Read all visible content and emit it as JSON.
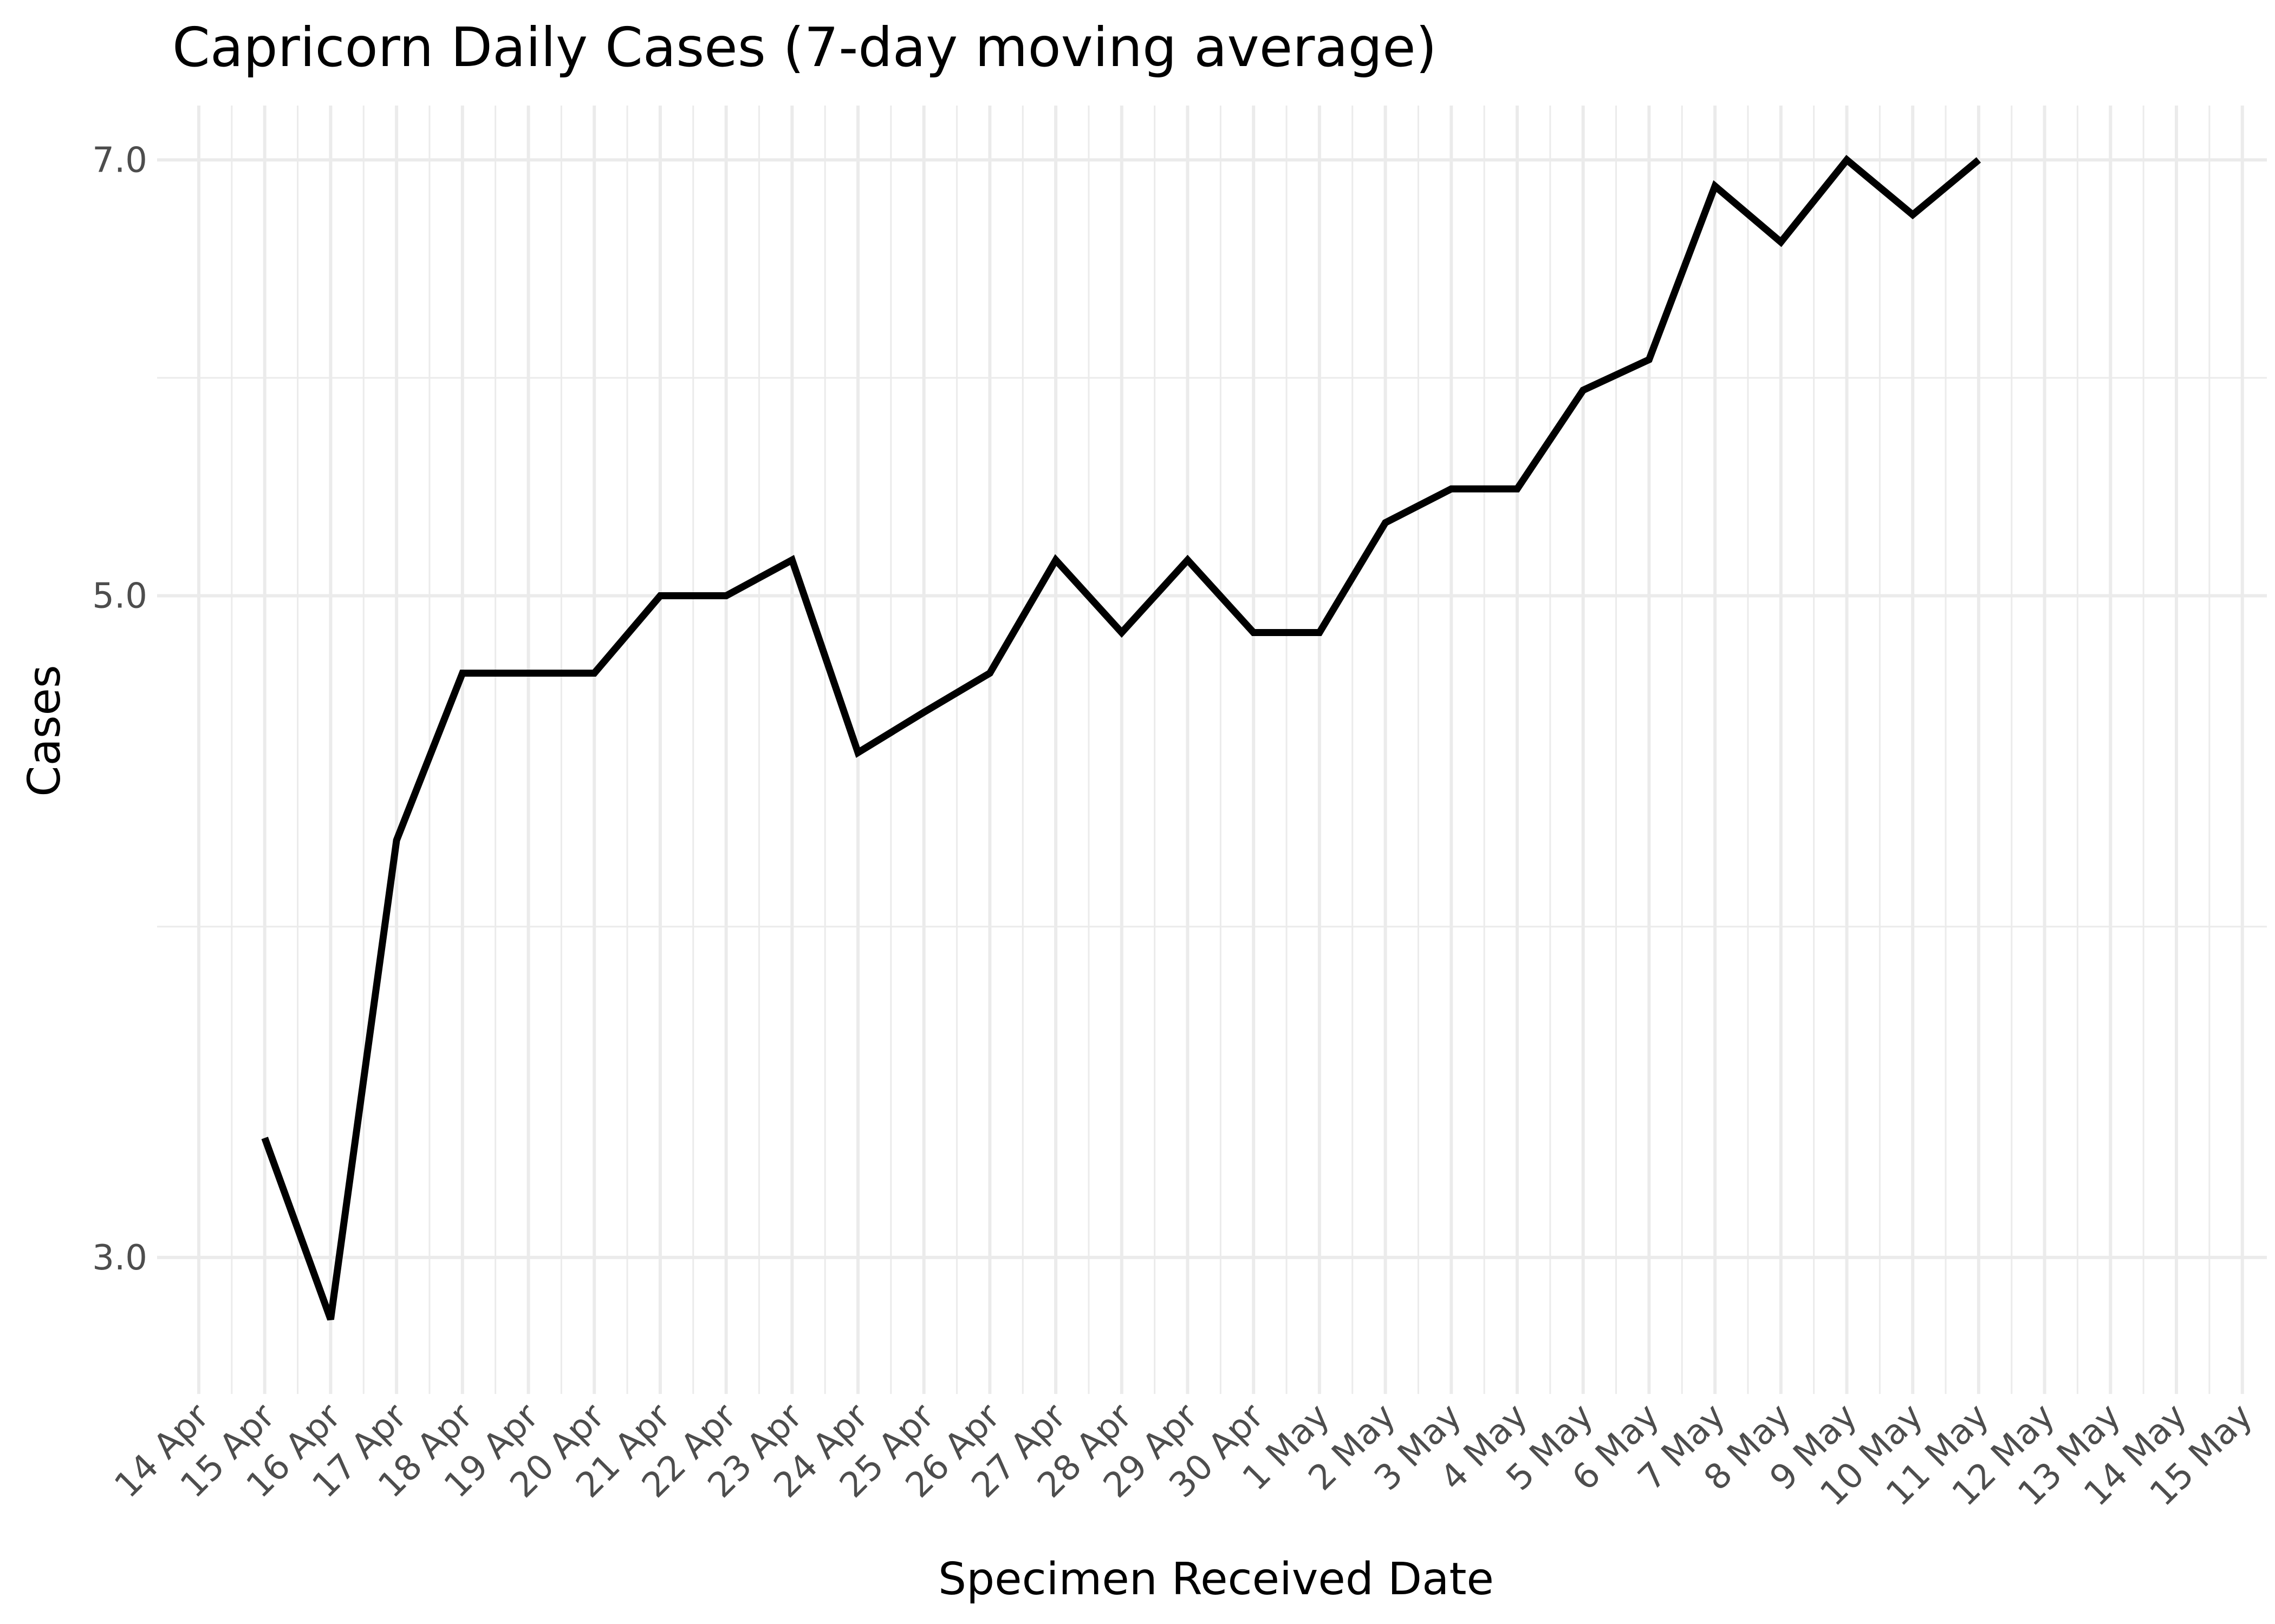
{
  "chart_data": {
    "type": "line",
    "title": "Capricorn Daily Cases (7-day moving average)",
    "xlabel": "Specimen Received Date",
    "ylabel": "Cases",
    "x_ticks": [
      "14 Apr",
      "15 Apr",
      "16 Apr",
      "17 Apr",
      "18 Apr",
      "19 Apr",
      "20 Apr",
      "21 Apr",
      "22 Apr",
      "23 Apr",
      "24 Apr",
      "25 Apr",
      "26 Apr",
      "27 Apr",
      "28 Apr",
      "29 Apr",
      "30 Apr",
      "1 May",
      "2 May",
      "3 May",
      "4 May",
      "5 May",
      "6 May",
      "7 May",
      "8 May",
      "9 May",
      "10 May",
      "11 May",
      "12 May",
      "13 May",
      "14 May",
      "15 May"
    ],
    "y_ticks": [
      "3.0",
      "5.0",
      "7.0"
    ],
    "y_scale": "log",
    "ylim": [
      2.7,
      7.3
    ],
    "grid": true,
    "series": [
      {
        "color": "#000000",
        "x": [
          "15 Apr",
          "16 Apr",
          "17 Apr",
          "18 Apr",
          "19 Apr",
          "20 Apr",
          "21 Apr",
          "22 Apr",
          "23 Apr",
          "24 Apr",
          "25 Apr",
          "26 Apr",
          "27 Apr",
          "28 Apr",
          "29 Apr",
          "30 Apr",
          "1 May",
          "2 May",
          "3 May",
          "4 May",
          "5 May",
          "6 May",
          "7 May",
          "8 May",
          "9 May",
          "10 May",
          "11 May"
        ],
        "values": [
          3.29,
          2.86,
          4.14,
          4.71,
          4.71,
          4.71,
          5.0,
          5.0,
          5.14,
          4.43,
          4.57,
          4.71,
          5.14,
          4.86,
          5.14,
          4.86,
          4.86,
          5.29,
          5.43,
          5.43,
          5.86,
          6.0,
          6.86,
          6.57,
          7.0,
          6.71,
          7.0
        ]
      }
    ]
  }
}
